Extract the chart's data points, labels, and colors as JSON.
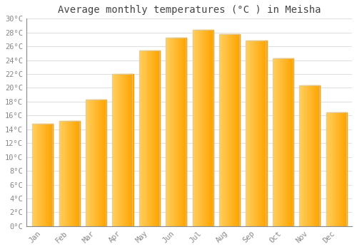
{
  "months": [
    "Jan",
    "Feb",
    "Mar",
    "Apr",
    "May",
    "Jun",
    "Jul",
    "Aug",
    "Sep",
    "Oct",
    "Nov",
    "Dec"
  ],
  "values": [
    14.8,
    15.2,
    18.3,
    22.0,
    25.4,
    27.2,
    28.4,
    27.8,
    26.8,
    24.3,
    20.4,
    16.4
  ],
  "bar_color_left": "#FFD060",
  "bar_color_right": "#FFA500",
  "bar_edge_color": "#cccccc",
  "title": "Average monthly temperatures (°C ) in Meisha",
  "ytick_labels": [
    "0°C",
    "2°C",
    "4°C",
    "6°C",
    "8°C",
    "10°C",
    "12°C",
    "14°C",
    "16°C",
    "18°C",
    "20°C",
    "22°C",
    "24°C",
    "26°C",
    "28°C",
    "30°C"
  ],
  "ytick_values": [
    0,
    2,
    4,
    6,
    8,
    10,
    12,
    14,
    16,
    18,
    20,
    22,
    24,
    26,
    28,
    30
  ],
  "ylim": [
    0,
    30
  ],
  "background_color": "#ffffff",
  "grid_color": "#e0e0e0",
  "title_fontsize": 10,
  "tick_fontsize": 7.5,
  "tick_color": "#888888",
  "title_color": "#444444",
  "font_family": "monospace",
  "bar_width": 0.75
}
